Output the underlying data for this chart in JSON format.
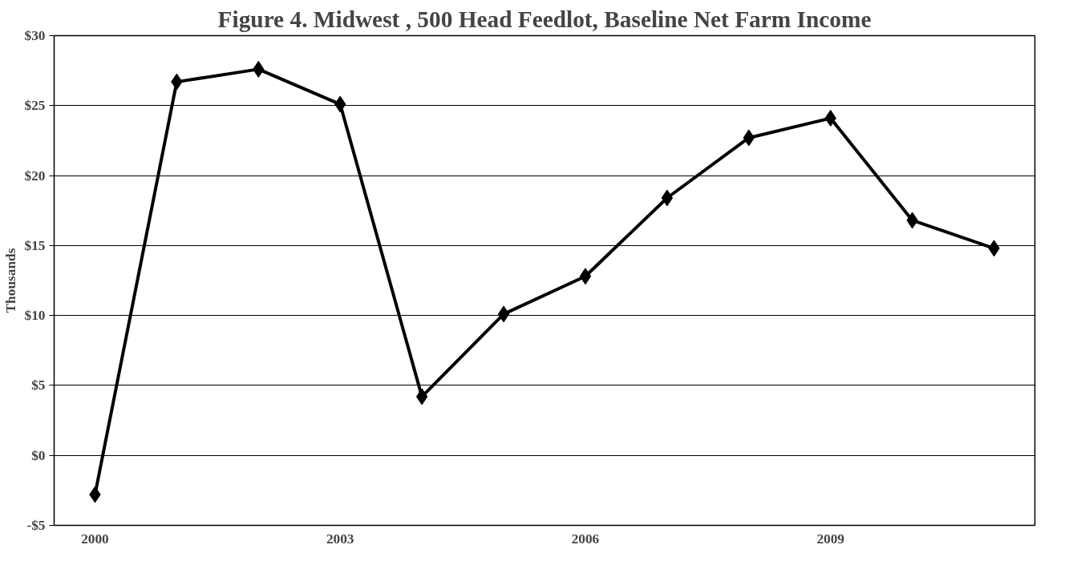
{
  "chart_data": {
    "type": "line",
    "title": "Figure 4. Midwest , 500 Head Feedlot, Baseline Net Farm Income",
    "ylabel": "Thousands",
    "categories": [
      "2000",
      null,
      null,
      "2003",
      null,
      null,
      "2006",
      null,
      null,
      "2009",
      null,
      null
    ],
    "series": [
      {
        "color": "#000000",
        "values": [
          -2.8,
          26.7,
          27.6,
          25.1,
          4.2,
          10.1,
          12.8,
          18.4,
          22.7,
          24.1,
          16.8,
          14.8
        ]
      }
    ],
    "ylim": [
      -5,
      30
    ],
    "yticks": [
      {
        "value": -5,
        "label": "-$5"
      },
      {
        "value": 0,
        "label": "$0"
      },
      {
        "value": 5,
        "label": "$5"
      },
      {
        "value": 10,
        "label": "$10"
      },
      {
        "value": 15,
        "label": "$15"
      },
      {
        "value": 20,
        "label": "$20"
      },
      {
        "value": 25,
        "label": "$25"
      },
      {
        "value": 30,
        "label": "$30"
      }
    ],
    "grid": "y",
    "marker": "diamond",
    "line_style": "solid"
  }
}
